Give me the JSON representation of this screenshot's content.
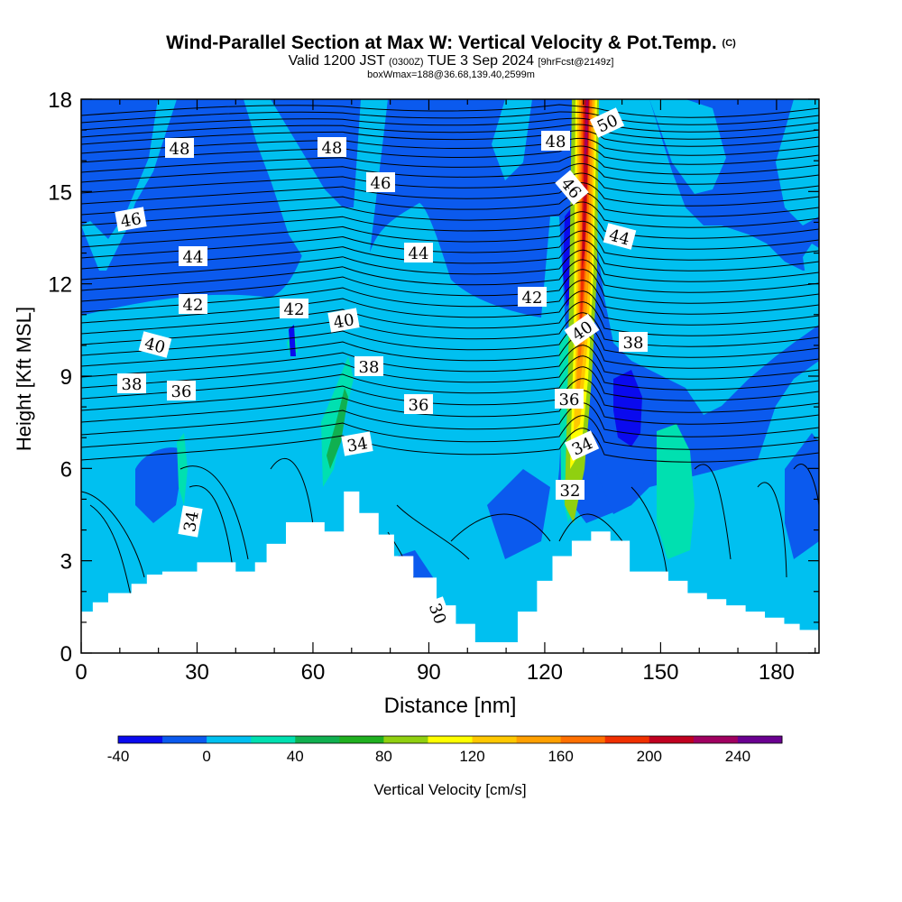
{
  "title": {
    "line1": "Wind-Parallel Section at Max W: Vertical Velocity & Pot.Temp.",
    "line1_mark": "(C)",
    "line2_a": "Valid 1200 JST",
    "line2_b": "(0300Z)",
    "line2_c": "TUE 3 Sep 2024",
    "line2_d": "[9hrFcst@2149z]",
    "line3": "boxWmax=188@36.68,139.40,2599m"
  },
  "chart_data": {
    "type": "heatmap",
    "xlabel": "Distance [nm]",
    "ylabel": "Height [Kft MSL]",
    "xlim": [
      0,
      191
    ],
    "ylim": [
      0,
      18
    ],
    "xticks": [
      0,
      30,
      60,
      90,
      120,
      150,
      180
    ],
    "yticks": [
      0,
      3,
      6,
      9,
      12,
      15,
      18
    ],
    "colorbar": {
      "label": "Vertical Velocity [cm/s]",
      "levels": [
        -40,
        -20,
        0,
        20,
        40,
        60,
        80,
        100,
        120,
        140,
        160,
        180,
        200,
        220,
        240,
        260
      ],
      "tick_labels": [
        -40,
        0,
        40,
        80,
        120,
        160,
        200,
        240
      ],
      "colors": [
        "#0a0aee",
        "#0b5aee",
        "#00c0f0",
        "#00e0b0",
        "#10b050",
        "#20b020",
        "#90d010",
        "#ffff00",
        "#ffc800",
        "#ffa000",
        "#ff7000",
        "#f03000",
        "#c00020",
        "#a00060",
        "#6a0090"
      ]
    },
    "terrain_kft": {
      "x": [
        0,
        3,
        7,
        13,
        17,
        21,
        25,
        30,
        35,
        40,
        45,
        48,
        53,
        58,
        63,
        68,
        72,
        77,
        81,
        86,
        92,
        97,
        102,
        108,
        113,
        118,
        122,
        127,
        132,
        137,
        142,
        147,
        152,
        157,
        162,
        167,
        172,
        177,
        182,
        186,
        191
      ],
      "y": [
        1.35,
        1.65,
        1.95,
        2.25,
        2.55,
        2.65,
        2.65,
        2.95,
        2.95,
        2.65,
        2.95,
        3.55,
        4.25,
        4.25,
        3.95,
        5.25,
        4.55,
        3.85,
        3.15,
        2.45,
        1.55,
        0.95,
        0.35,
        0.35,
        1.35,
        2.35,
        3.15,
        3.65,
        3.95,
        3.65,
        2.65,
        2.65,
        2.35,
        1.95,
        1.75,
        1.55,
        1.35,
        1.15,
        0.95,
        0.75,
        0.75
      ]
    },
    "pot_temp_labels_c": [
      48,
      48,
      46,
      46,
      44,
      44,
      42,
      42,
      40,
      40,
      38,
      38,
      36,
      36,
      34,
      34,
      48,
      50,
      46,
      44,
      42,
      40,
      38,
      36,
      34,
      32,
      30
    ]
  }
}
